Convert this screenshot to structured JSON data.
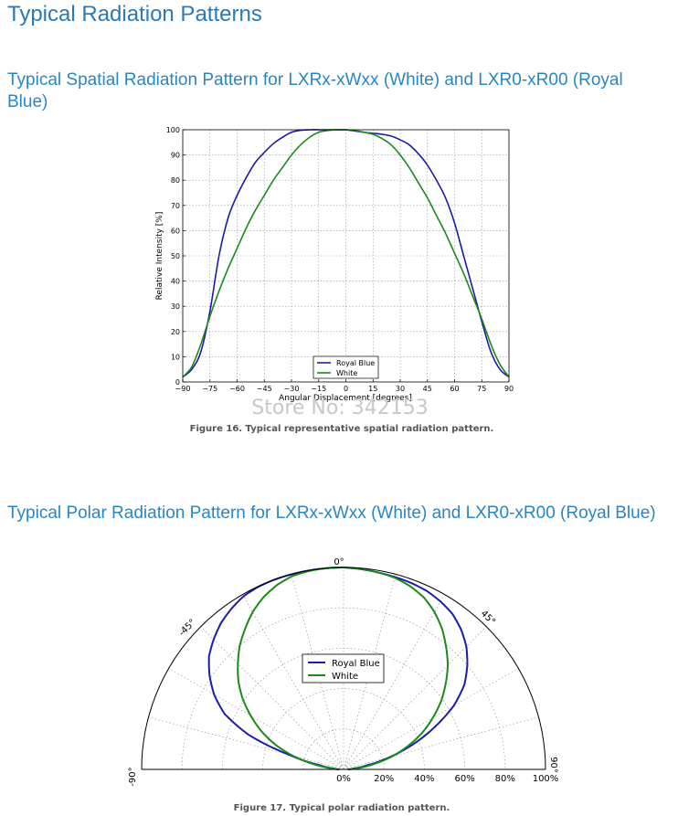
{
  "page_title": "Typical Radiation Patterns",
  "section1_title": "Typical Spatial Radiation Pattern for LXRx-xWxx (White) and LXR0-xR00 (Royal Blue)",
  "section2_title": "Typical Polar Radiation Pattern for LXRx-xWxx (White) and LXR0-xR00 (Royal Blue)",
  "watermark": "Store No: 342153",
  "colors": {
    "royal_blue": "#1c1ca8",
    "white_series": "#1a8a1a",
    "heading": "#2a86c0"
  },
  "chart_data": [
    {
      "type": "line",
      "title": "",
      "caption": "Figure 16.  Typical representative spatial radiation pattern.",
      "xlabel": "Angular Displacement [degrees]",
      "ylabel": "Relative Intensity [%]",
      "xlim": [
        -90,
        90
      ],
      "ylim": [
        0,
        100
      ],
      "xticks": [
        -90,
        -75,
        -60,
        -45,
        -30,
        -15,
        0,
        15,
        30,
        45,
        60,
        75,
        90
      ],
      "xtick_labels": [
        "−90",
        "−75",
        "−60",
        "−45",
        "−30",
        "−15",
        "0",
        "15",
        "30",
        "45",
        "60",
        "75",
        "90"
      ],
      "yticks": [
        0,
        10,
        20,
        30,
        40,
        50,
        60,
        70,
        80,
        90,
        100
      ],
      "grid": true,
      "legend_position": "bottom-center",
      "x": [
        -90,
        -85,
        -80,
        -75,
        -70,
        -65,
        -60,
        -55,
        -50,
        -45,
        -40,
        -35,
        -30,
        -25,
        -20,
        -15,
        -10,
        -5,
        0,
        5,
        10,
        15,
        20,
        25,
        30,
        35,
        40,
        45,
        50,
        55,
        60,
        65,
        70,
        75,
        80,
        85,
        90
      ],
      "series": [
        {
          "name": "Royal Blue",
          "color": "#1c1ca8",
          "values": [
            2,
            5,
            12,
            28,
            50,
            65,
            74,
            81,
            87,
            91,
            94.5,
            97,
            99,
            99.8,
            100,
            100,
            100,
            100,
            100,
            99.5,
            99,
            98.6,
            98.2,
            97.5,
            96,
            94,
            90.5,
            86,
            80,
            73,
            63,
            50,
            37,
            24,
            12,
            5,
            2
          ]
        },
        {
          "name": "White",
          "color": "#1a8a1a",
          "values": [
            2,
            6,
            15,
            26,
            36,
            45,
            53,
            61,
            68,
            74,
            80,
            85,
            90,
            94,
            97,
            99,
            99.7,
            100,
            100,
            99.7,
            99,
            98.2,
            96.5,
            94,
            90,
            85,
            79,
            73,
            66,
            59,
            51,
            43,
            34,
            25,
            15,
            7,
            2
          ]
        }
      ]
    },
    {
      "type": "polar",
      "title": "",
      "caption": "Figure 17.  Typical polar radiation pattern.",
      "angle_labels": [
        "0°",
        "-45°",
        "45°",
        "-90°",
        "90°"
      ],
      "radial_tick_labels": [
        "0%",
        "20%",
        "40%",
        "60%",
        "80%",
        "100%"
      ],
      "rlim": [
        0,
        100
      ],
      "grid": true,
      "legend_position": "center",
      "series_names": [
        "Royal Blue",
        "White"
      ]
    }
  ]
}
